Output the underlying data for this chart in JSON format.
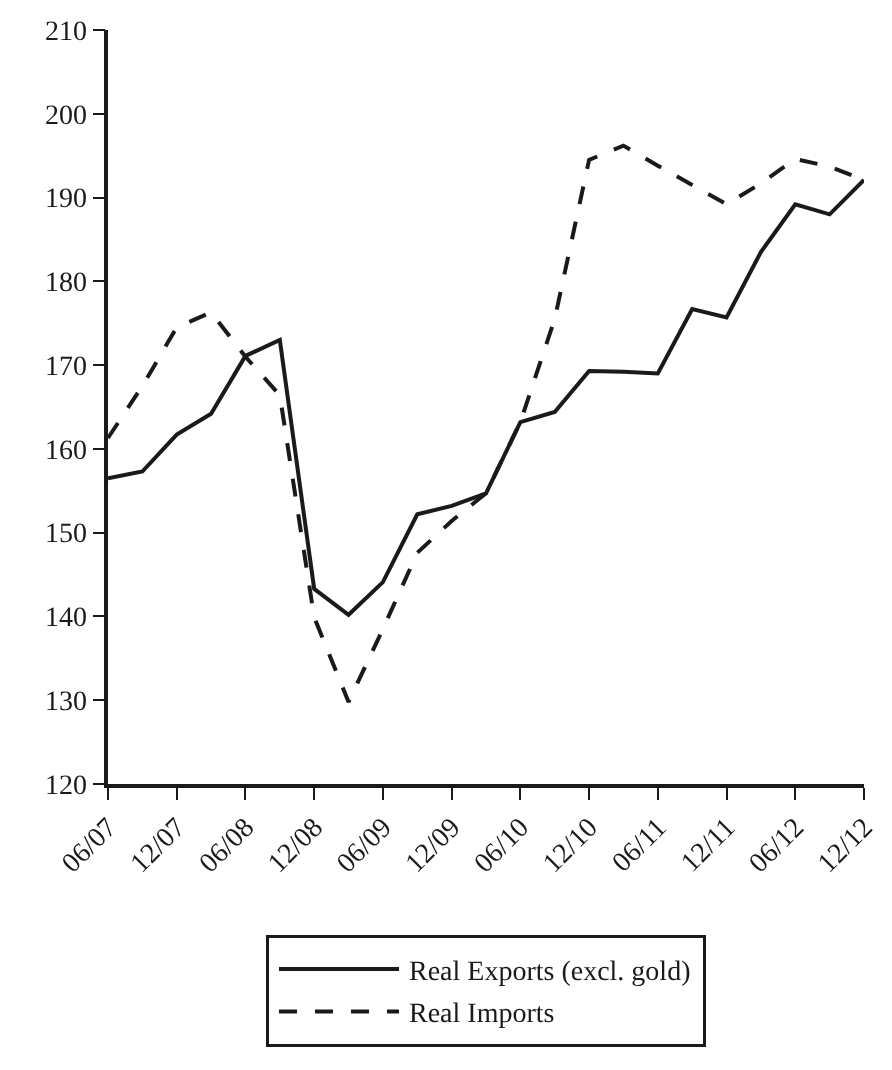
{
  "chart_data": {
    "type": "line",
    "categories": [
      "06/07",
      null,
      "12/07",
      null,
      "06/08",
      null,
      "12/08",
      null,
      "06/09",
      null,
      "12/09",
      null,
      "06/10",
      null,
      "12/10",
      null,
      "06/11",
      null,
      "12/11",
      null,
      "06/12",
      null,
      "12/12"
    ],
    "series": [
      {
        "name": "Real Exports (excl. gold)",
        "color": "#1a1a1a",
        "line_style": "solid",
        "values": [
          156.5,
          157.3,
          161.7,
          164.2,
          171.1,
          173.0,
          143.3,
          140.2,
          144.1,
          152.2,
          153.2,
          154.7,
          163.2,
          164.4,
          169.3,
          169.2,
          169.0,
          176.7,
          175.7,
          183.5,
          189.2,
          188.0,
          192.1
        ]
      },
      {
        "name": "Real Imports",
        "color": "#1a1a1a",
        "line_style": "dashed",
        "values": [
          161.3,
          167.5,
          174.5,
          176.3,
          171.0,
          166.4,
          139.9,
          129.8,
          138.5,
          147.6,
          151.4,
          154.7,
          163.2,
          175.5,
          194.5,
          196.2,
          193.8,
          191.5,
          189.2,
          191.7,
          194.6,
          193.7,
          192.1
        ]
      }
    ],
    "ylim": [
      120,
      210
    ],
    "yticks": [
      120,
      130,
      140,
      150,
      160,
      170,
      180,
      190,
      200,
      210
    ],
    "grid": false,
    "legend": "bottom",
    "marker": "none"
  }
}
